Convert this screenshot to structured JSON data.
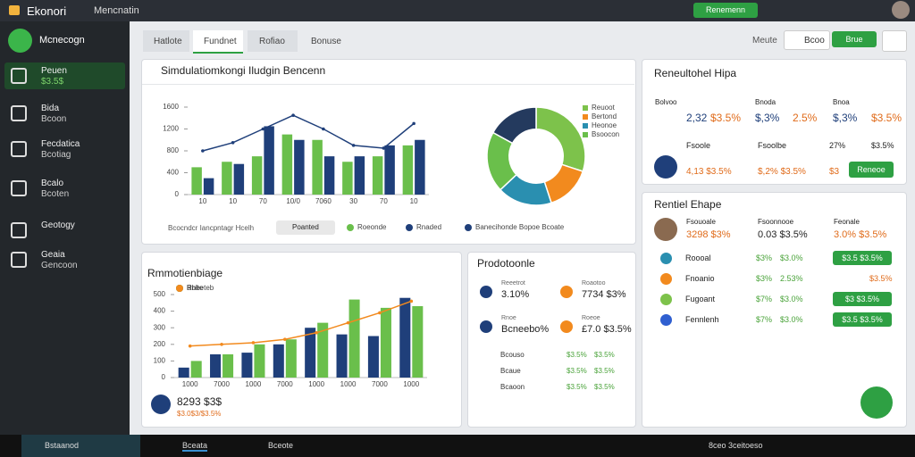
{
  "topbar": {
    "app": "Ekonori",
    "section": "Mencnatin",
    "button": "Renemenn"
  },
  "sidebar": {
    "brand": "Mcnecogn",
    "items": [
      {
        "label": "Peuen",
        "sub": "$3.5$"
      },
      {
        "label": "Bida",
        "sub": "Bcoon"
      },
      {
        "label": "Fecdatica",
        "sub": "Bcotiag"
      },
      {
        "label": "Bcalo",
        "sub": "Bcoten"
      },
      {
        "label": "Geotogy"
      },
      {
        "label": "Geaia",
        "sub": "Gencoon"
      }
    ]
  },
  "tabs": [
    "Hatlote",
    "Fundnet",
    "Rofiao",
    "Bonuse"
  ],
  "toolbar": {
    "label": "Meute",
    "search": "Bcoo",
    "action": "Brue"
  },
  "chart_data": [
    {
      "type": "bar",
      "title": "Simdulatiomkongi Iludgin Bencenn",
      "filter": "Bcocndcr Iancpntagr Hcelh",
      "dropdown": "Poanted",
      "categories": [
        "10",
        "10",
        "70",
        "10/0",
        "7060",
        "30",
        "70",
        "10"
      ],
      "ylim": [
        0,
        1600
      ],
      "yticks": [
        0,
        400,
        800,
        1200,
        1600
      ],
      "series": [
        {
          "name": "Roeonde",
          "color": "#6abf4b",
          "values": [
            500,
            600,
            700,
            1100,
            1000,
            600,
            700,
            900
          ]
        },
        {
          "name": "Rnaded",
          "color": "#1f3f7a",
          "values": [
            300,
            560,
            1250,
            1000,
            700,
            700,
            900,
            1000
          ]
        },
        {
          "name": "Banecihonde Bopoe Bcoate",
          "type": "line",
          "color": "#1f3f7a",
          "values": [
            800,
            950,
            1200,
            1450,
            1200,
            900,
            850,
            1300
          ]
        }
      ]
    },
    {
      "type": "pie",
      "categories": [
        "Reuoot",
        "Bertond",
        "Heonoe",
        "Bsoocon",
        null
      ],
      "values": [
        30,
        15,
        18,
        20,
        17
      ],
      "colors": [
        "#7dc24b",
        "#f28a1e",
        "#2a8fb0",
        "#6abf4b",
        "#243a5e"
      ]
    },
    {
      "type": "bar",
      "title": "Rmmotienbiage",
      "footer": "8293 $3$",
      "footer_sub": "$3.0$3/$3.5%",
      "categories": [
        "1000",
        "7000",
        "1000",
        "7000",
        "1000",
        "1000",
        "7000",
        "1000"
      ],
      "ylim": [
        0,
        500
      ],
      "yticks": [
        0,
        100,
        200,
        300,
        400,
        500
      ],
      "series": [
        {
          "name": "Rbl",
          "color": "#1f3f7a",
          "values": [
            60,
            140,
            150,
            200,
            300,
            260,
            250,
            480
          ]
        },
        {
          "name": "Rneeteb",
          "color": "#6abf4b",
          "values": [
            100,
            140,
            200,
            230,
            330,
            470,
            420,
            430
          ]
        },
        {
          "name": "Bnite",
          "type": "line",
          "color": "#f28a1e",
          "values": [
            190,
            200,
            210,
            230,
            270,
            330,
            390,
            460
          ]
        }
      ]
    }
  ],
  "products": {
    "title": "Prodotoonle",
    "cards": [
      {
        "label": "Reeetrot",
        "value": "3.10%"
      },
      {
        "label": "Roaotoo",
        "value": "7734 $3%"
      },
      {
        "label": "Rnoe",
        "value": "Bcneebo%"
      },
      {
        "label": "Roeoe",
        "value": "£7.0 $3.5%"
      }
    ],
    "rows": [
      [
        "Bcouso",
        "$3.5%",
        "$3.5%"
      ],
      [
        "Bcaue",
        "$3.5%",
        "$3.5%"
      ],
      [
        "Bcaoon",
        "$3.5%",
        "$3.5%"
      ]
    ]
  },
  "summary": {
    "title": "Reneultohel Hipa",
    "labels": [
      "Bolvoo",
      "Bnoda",
      "Bnoa"
    ],
    "values": [
      "2,32",
      "$3.5%",
      "$,3%",
      "2.5%",
      "$,3%",
      "$3.5%"
    ],
    "row1": [
      "Fsoole",
      "Fsoolbe",
      "27%",
      "$3.5%"
    ],
    "row2": [
      "4,13 $3.5%",
      "$,2% $3.5%",
      "$3"
    ],
    "button": "Reneoe"
  },
  "team": {
    "title": "Rentiel Ehape",
    "heads": [
      {
        "label": "Fsouoale",
        "value": "3298 $3%"
      },
      {
        "label": "Fsoonnooe",
        "value": "0.03 $3.5%"
      },
      {
        "label": "Feonale",
        "value": "3.0% $3.5%"
      }
    ],
    "rows": [
      {
        "name": "Roooal",
        "v1": "$3%",
        "v2": "$3.0%",
        "button": "$3.5 $3.5%"
      },
      {
        "name": "Fnoanio",
        "v1": "$3%",
        "v2": "2.53%",
        "v3": "$3.5%"
      },
      {
        "name": "Fugoant",
        "v1": "$7%",
        "v2": "$3.0%",
        "button": "$3 $3.5%"
      },
      {
        "name": "Fennlenh",
        "v1": "$7%",
        "v2": "$3.0%",
        "button": "$3.5 $3.5%"
      }
    ]
  },
  "taskbar": {
    "search": "Bstaanod",
    "app1": "Bceata",
    "app2": "Bceote",
    "time": "8ceo 3ceitoeso"
  }
}
